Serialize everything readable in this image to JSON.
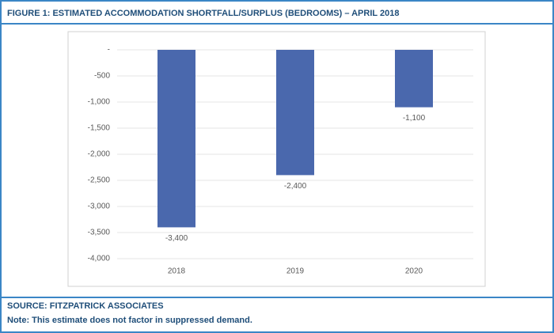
{
  "chart_data": {
    "type": "bar",
    "title": "FIGURE 1: ESTIMATED ACCOMMODATION SHORTFALL/SURPLUS (BEDROOMS) – APRIL 2018",
    "categories": [
      "2018",
      "2019",
      "2020"
    ],
    "values": [
      -3400,
      -2400,
      -1100
    ],
    "value_labels": [
      "-3,400",
      "-2,400",
      "-1,100"
    ],
    "color": "#4a68ad",
    "ylim": [
      -4000,
      0
    ],
    "yticks": [
      {
        "value": 0,
        "label": "-"
      },
      -500,
      {
        "value": -1000,
        "label": "-1,000"
      },
      {
        "value": -1500,
        "label": "-1,500"
      },
      {
        "value": -2000,
        "label": "-2,000"
      },
      {
        "value": -2500,
        "label": "-2,500"
      },
      {
        "value": -3000,
        "label": "-3,000"
      },
      {
        "value": -3500,
        "label": "-3,500"
      },
      {
        "value": -4000,
        "label": "-4,000"
      }
    ],
    "grid": true,
    "source": "SOURCE: FITZPATRICK ASSOCIATES",
    "note": "Note: This estimate does not factor in suppressed demand."
  }
}
